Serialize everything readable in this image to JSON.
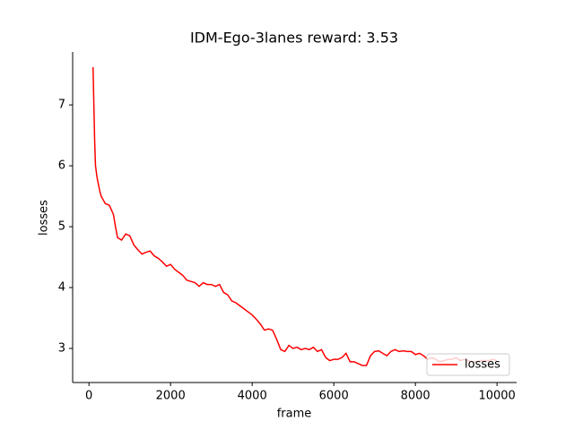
{
  "chart_data": {
    "type": "line",
    "title": "IDM-Ego-3lanes reward: 3.53",
    "xlabel": "frame",
    "ylabel": "losses",
    "x": [
      100,
      120,
      140,
      160,
      200,
      260,
      300,
      400,
      500,
      600,
      650,
      700,
      800,
      900,
      1000,
      1100,
      1200,
      1300,
      1400,
      1500,
      1600,
      1700,
      1800,
      1900,
      2000,
      2100,
      2200,
      2300,
      2400,
      2500,
      2600,
      2700,
      2800,
      2900,
      3000,
      3100,
      3200,
      3300,
      3400,
      3500,
      3600,
      3700,
      3800,
      3900,
      4000,
      4100,
      4200,
      4300,
      4400,
      4500,
      4600,
      4700,
      4800,
      4900,
      5000,
      5100,
      5200,
      5300,
      5400,
      5500,
      5600,
      5700,
      5800,
      5900,
      6000,
      6100,
      6200,
      6300,
      6400,
      6500,
      6600,
      6700,
      6800,
      6900,
      7000,
      7100,
      7200,
      7300,
      7400,
      7500,
      7600,
      7700,
      7800,
      7900,
      8000,
      8100,
      8200,
      8300,
      8400,
      8500,
      8600,
      8700,
      8800,
      8900,
      9000,
      9100,
      9200,
      9300,
      9400,
      9500,
      9600,
      9700,
      9800,
      9900,
      10000
    ],
    "series": [
      {
        "name": "losses",
        "color": "#ff0000",
        "values": [
          7.62,
          7.0,
          6.4,
          6.0,
          5.8,
          5.6,
          5.5,
          5.38,
          5.35,
          5.2,
          5.0,
          4.82,
          4.78,
          4.88,
          4.85,
          4.7,
          4.62,
          4.55,
          4.58,
          4.6,
          4.52,
          4.48,
          4.42,
          4.35,
          4.38,
          4.3,
          4.25,
          4.2,
          4.12,
          4.1,
          4.08,
          4.02,
          4.08,
          4.05,
          4.05,
          4.02,
          4.05,
          3.92,
          3.88,
          3.78,
          3.75,
          3.7,
          3.65,
          3.6,
          3.55,
          3.48,
          3.4,
          3.3,
          3.32,
          3.3,
          3.15,
          2.98,
          2.95,
          3.05,
          3.0,
          3.02,
          2.98,
          3.0,
          2.98,
          3.02,
          2.95,
          2.98,
          2.85,
          2.8,
          2.82,
          2.82,
          2.85,
          2.92,
          2.78,
          2.78,
          2.75,
          2.72,
          2.72,
          2.88,
          2.95,
          2.96,
          2.92,
          2.88,
          2.95,
          2.98,
          2.95,
          2.96,
          2.95,
          2.95,
          2.9,
          2.92,
          2.88,
          2.82,
          2.85,
          2.82,
          2.78,
          2.8,
          2.82,
          2.82,
          2.85,
          2.8,
          2.82,
          2.8,
          2.78,
          2.78,
          2.8,
          2.8,
          2.8,
          2.82,
          2.8
        ]
      }
    ],
    "xlim": [
      -400,
      10480
    ],
    "ylim": [
      2.44,
      7.87
    ],
    "xticks": [
      0,
      2000,
      4000,
      6000,
      8000,
      10000
    ],
    "yticks": [
      3,
      4,
      5,
      6,
      7
    ],
    "legend": "lower right"
  }
}
